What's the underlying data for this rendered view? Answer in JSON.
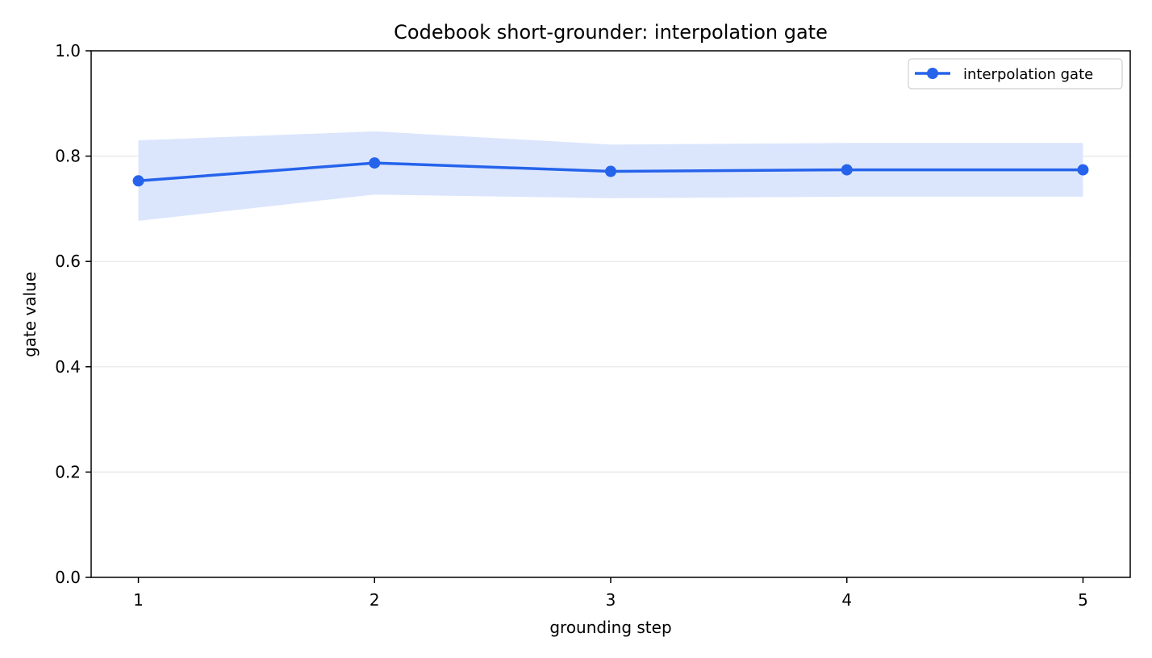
{
  "chart_data": {
    "type": "line",
    "title": "Codebook short-grounder: interpolation gate",
    "xlabel": "grounding step",
    "ylabel": "gate value",
    "x": [
      1,
      2,
      3,
      4,
      5
    ],
    "xticks": [
      "1",
      "2",
      "3",
      "4",
      "5"
    ],
    "xlim": [
      0.8,
      5.2
    ],
    "ylim": [
      0.0,
      1.0
    ],
    "yticks": [
      "0.0",
      "0.2",
      "0.4",
      "0.6",
      "0.8",
      "1.0"
    ],
    "grid": "horizontal",
    "legend_position": "top-right",
    "series": [
      {
        "name": "interpolation gate",
        "values": [
          0.753,
          0.787,
          0.771,
          0.774,
          0.774
        ],
        "band_upper": [
          0.83,
          0.847,
          0.822,
          0.825,
          0.825
        ],
        "band_lower": [
          0.677,
          0.727,
          0.72,
          0.723,
          0.723
        ],
        "color": "#2563eb",
        "band_color": "#dbe6fd"
      }
    ]
  }
}
